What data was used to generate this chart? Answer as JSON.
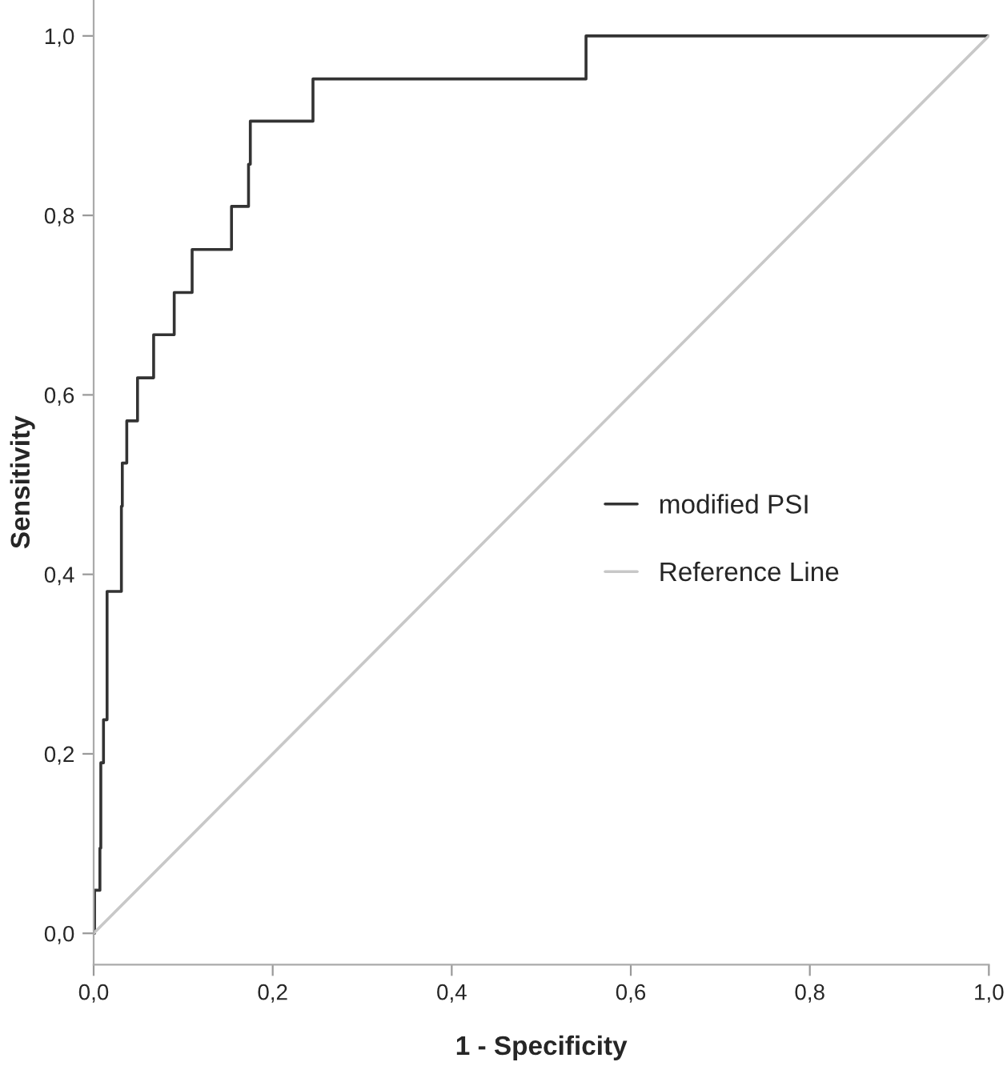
{
  "chart_data": {
    "type": "line",
    "xlabel": "1 - Specificity",
    "ylabel": "Sensitivity",
    "xlim": [
      0,
      1
    ],
    "ylim": [
      -0.035,
      1.04
    ],
    "xticks": [
      {
        "value": 0,
        "label": "0,0"
      },
      {
        "value": 0.2,
        "label": "0,2"
      },
      {
        "value": 0.4,
        "label": "0,4"
      },
      {
        "value": 0.6,
        "label": "0,6"
      },
      {
        "value": 0.8,
        "label": "0,8"
      },
      {
        "value": 1,
        "label": "1,0"
      }
    ],
    "yticks": [
      {
        "value": 0,
        "label": "0,0"
      },
      {
        "value": 0.2,
        "label": "0,2"
      },
      {
        "value": 0.4,
        "label": "0,4"
      },
      {
        "value": 0.6,
        "label": "0,6"
      },
      {
        "value": 0.8,
        "label": "0,8"
      },
      {
        "value": 1,
        "label": "1,0"
      }
    ],
    "grid": false,
    "legend": "right",
    "marker": "none",
    "line_style": "solid",
    "series": [
      {
        "name": "modified PSI",
        "color": "#333333",
        "x": [
          0,
          0.001,
          0.001,
          0.007,
          0.007,
          0.008,
          0.008,
          0.011,
          0.011,
          0.015,
          0.015,
          0.031,
          0.031,
          0.032,
          0.032,
          0.037,
          0.037,
          0.049,
          0.049,
          0.067,
          0.067,
          0.09,
          0.09,
          0.11,
          0.11,
          0.148,
          0.148,
          0.154,
          0.154,
          0.173,
          0.173,
          0.175,
          0.175,
          0.245,
          0.245,
          0.55,
          0.55,
          1
        ],
        "values": [
          0,
          0,
          0.048,
          0.048,
          0.095,
          0.095,
          0.19,
          0.19,
          0.238,
          0.238,
          0.381,
          0.381,
          0.476,
          0.476,
          0.524,
          0.524,
          0.571,
          0.571,
          0.619,
          0.619,
          0.667,
          0.667,
          0.714,
          0.714,
          0.762,
          0.762,
          0.762,
          0.762,
          0.81,
          0.81,
          0.857,
          0.857,
          0.905,
          0.905,
          0.952,
          0.952,
          1,
          1
        ]
      },
      {
        "name": "Reference Line",
        "color": "#c8c8c8",
        "x": [
          0,
          1
        ],
        "values": [
          0,
          1
        ]
      }
    ]
  }
}
